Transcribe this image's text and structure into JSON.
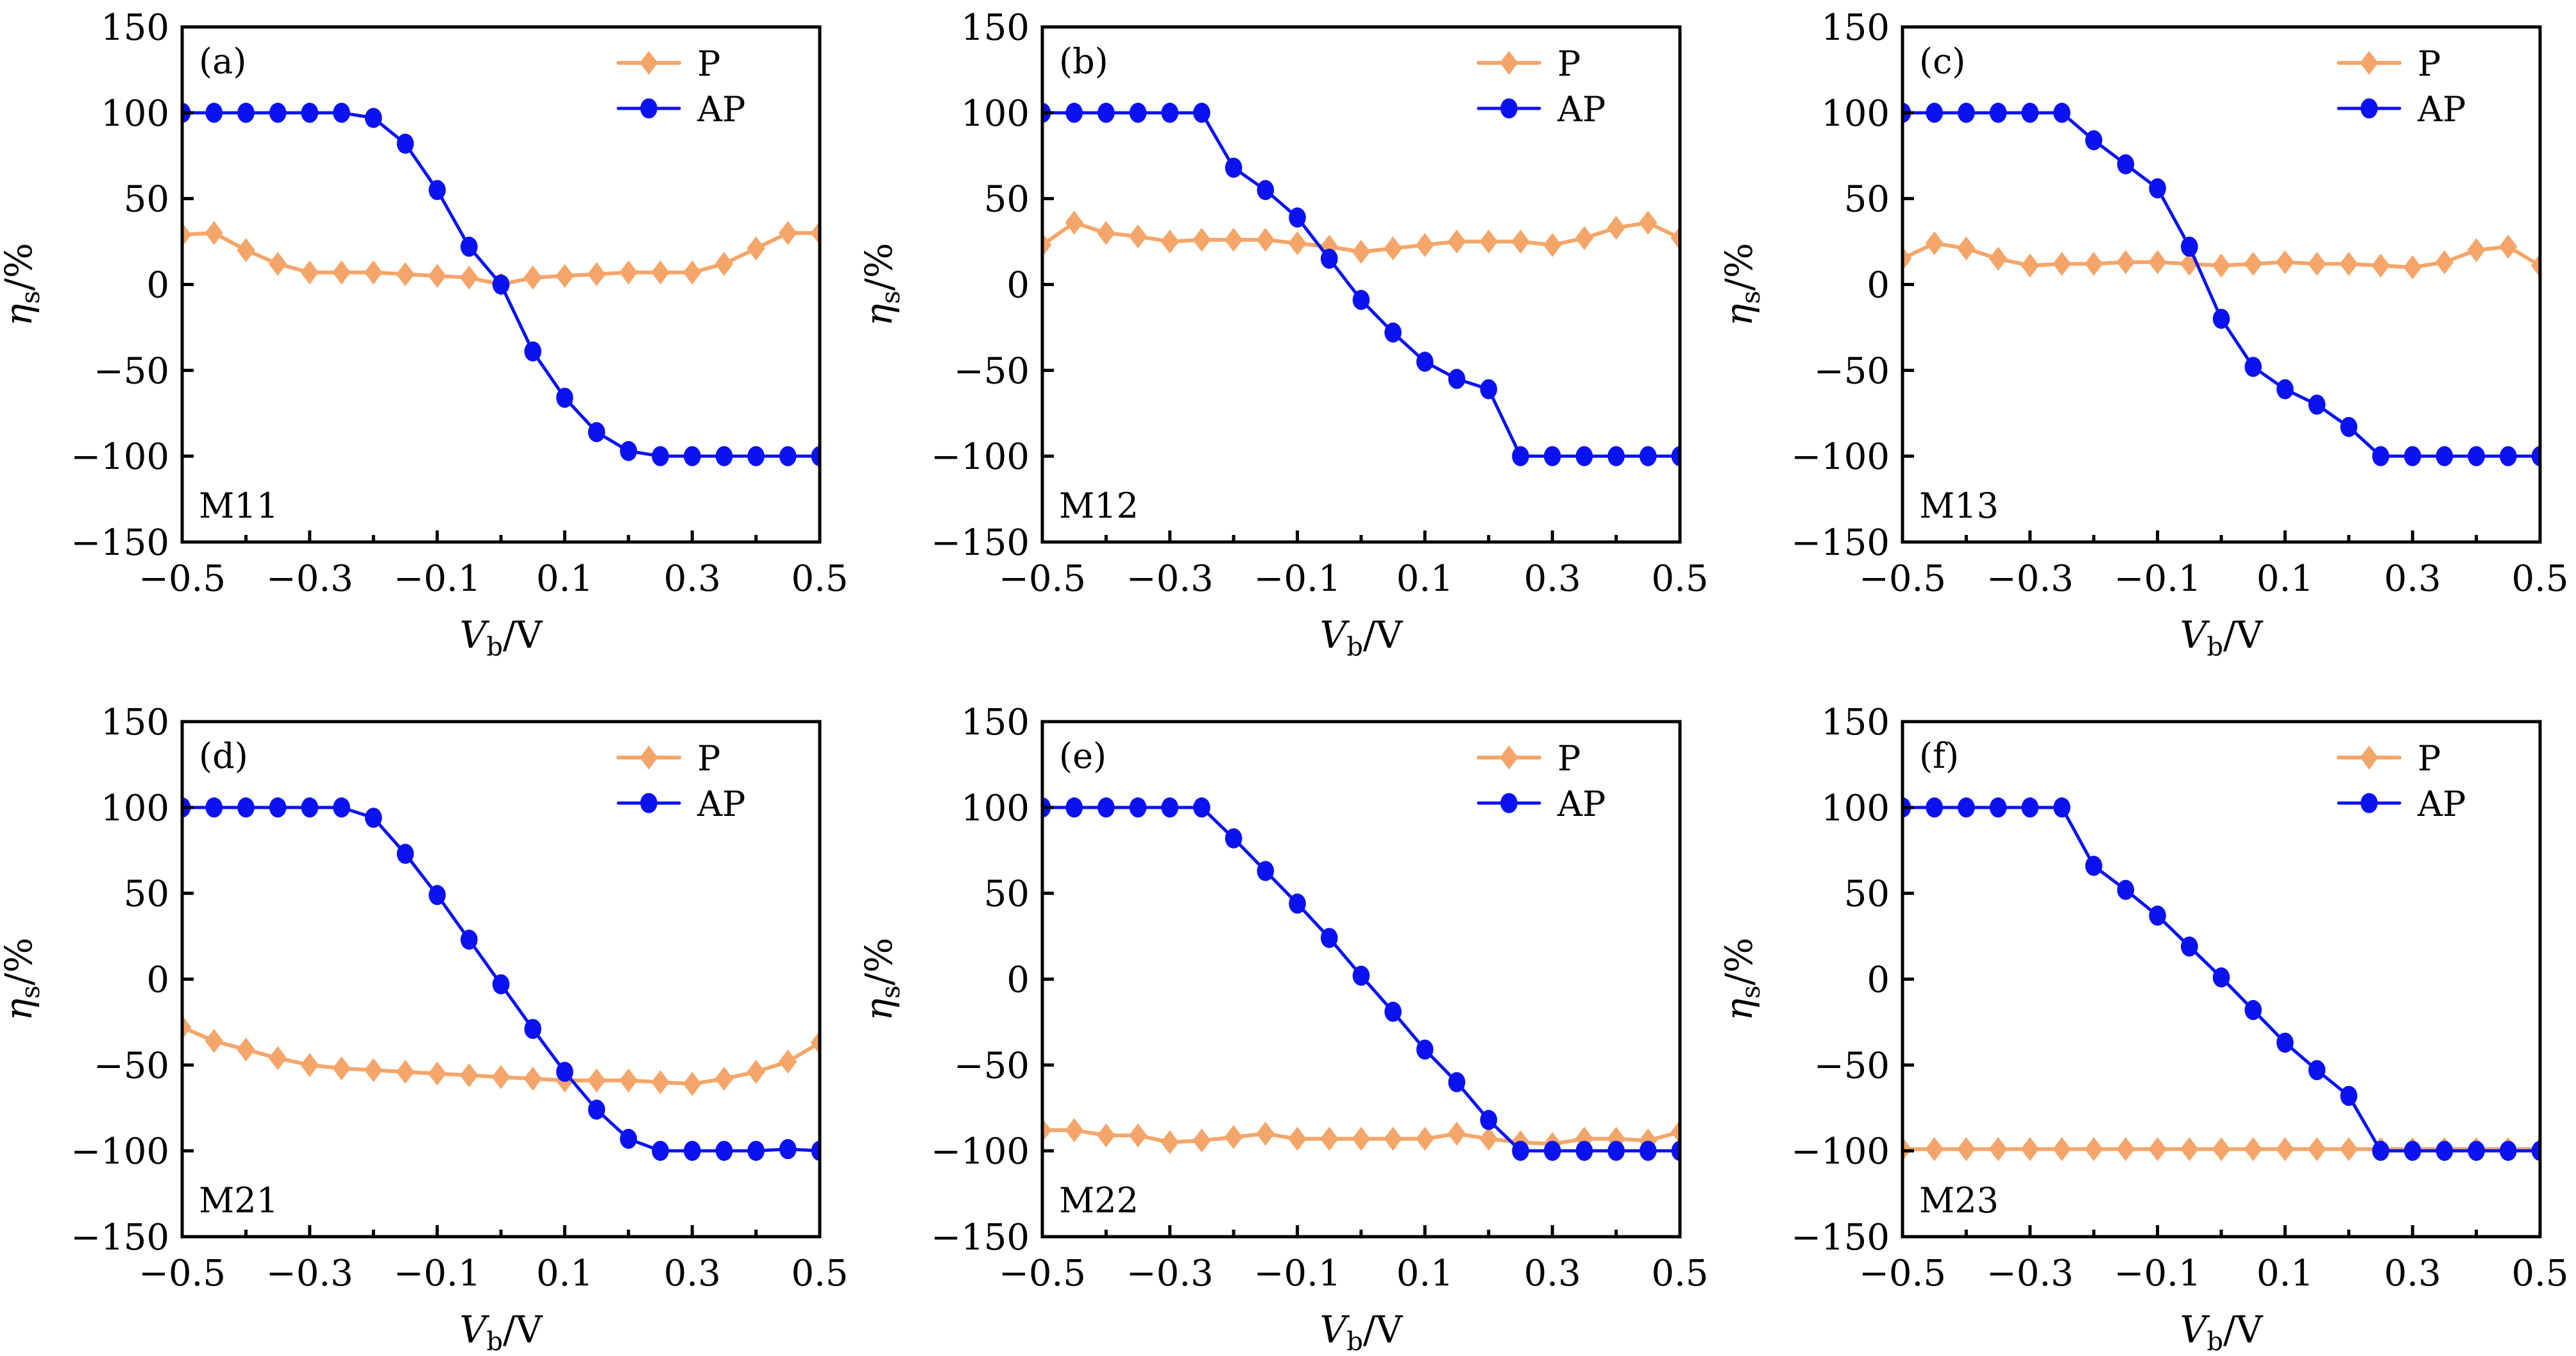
{
  "figure": {
    "description": "Spin injection efficiency vs bias voltage for six configurations",
    "colors": {
      "P": "#F4A66A",
      "AP": "#0A12F0",
      "axis": "#000000"
    }
  },
  "chart_data": [
    {
      "type": "line",
      "panel": "(a)",
      "annotation": "M11",
      "xlabel_main": "V",
      "xlabel_sub": "b",
      "xlabel_unit": "/V",
      "ylabel_main": "η",
      "ylabel_sub": "s",
      "ylabel_unit": "/%",
      "xlim": [
        -0.5,
        0.5
      ],
      "ylim": [
        -150,
        150
      ],
      "xticks": [
        -0.5,
        -0.3,
        -0.1,
        0.1,
        0.3,
        0.5
      ],
      "xtick_labels": [
        "−0.5",
        "−0.3",
        "−0.1",
        "0.1",
        "0.3",
        "0.5"
      ],
      "xminor": [
        -0.4,
        -0.2,
        0.0,
        0.2,
        0.4
      ],
      "yticks": [
        150,
        100,
        50,
        0,
        -50,
        -100,
        -150
      ],
      "ytick_labels": [
        "150",
        "100",
        "50",
        "0",
        "−50",
        "−100",
        "−150"
      ],
      "legend": [
        "P",
        "AP"
      ],
      "legend_position": "top-right",
      "x": [
        -0.5,
        -0.45,
        -0.4,
        -0.35,
        -0.3,
        -0.25,
        -0.2,
        -0.15,
        -0.1,
        -0.05,
        0,
        0.05,
        0.1,
        0.15,
        0.2,
        0.25,
        0.3,
        0.35,
        0.4,
        0.45,
        0.5
      ],
      "series": [
        {
          "name": "P",
          "marker": "diamond",
          "values": [
            29,
            30,
            20,
            12,
            7,
            7,
            7,
            6,
            5,
            4,
            0,
            4,
            5,
            6,
            7,
            7,
            7,
            12,
            21,
            30,
            30
          ]
        },
        {
          "name": "AP",
          "marker": "circle",
          "values": [
            100,
            100,
            100,
            100,
            100,
            100,
            97,
            82,
            55,
            22,
            0,
            -39,
            -66,
            -86,
            -97,
            -100,
            -100,
            -100,
            -100,
            -100,
            -100
          ]
        }
      ]
    },
    {
      "type": "line",
      "panel": "(b)",
      "annotation": "M12",
      "xlabel_main": "V",
      "xlabel_sub": "b",
      "xlabel_unit": "/V",
      "ylabel_main": "η",
      "ylabel_sub": "s",
      "ylabel_unit": "/%",
      "xlim": [
        -0.5,
        0.5
      ],
      "ylim": [
        -150,
        150
      ],
      "xticks": [
        -0.5,
        -0.3,
        -0.1,
        0.1,
        0.3,
        0.5
      ],
      "xtick_labels": [
        "−0.5",
        "−0.3",
        "−0.1",
        "0.1",
        "0.3",
        "0.5"
      ],
      "xminor": [
        -0.4,
        -0.2,
        0.0,
        0.2,
        0.4
      ],
      "yticks": [
        150,
        100,
        50,
        0,
        -50,
        -100,
        -150
      ],
      "ytick_labels": [
        "150",
        "100",
        "50",
        "0",
        "−50",
        "−100",
        "−150"
      ],
      "legend": [
        "P",
        "AP"
      ],
      "legend_position": "top-right",
      "x": [
        -0.5,
        -0.45,
        -0.4,
        -0.35,
        -0.3,
        -0.25,
        -0.2,
        -0.15,
        -0.1,
        -0.05,
        0,
        0.05,
        0.1,
        0.15,
        0.2,
        0.25,
        0.3,
        0.35,
        0.4,
        0.45,
        0.5
      ],
      "series": [
        {
          "name": "P",
          "marker": "diamond",
          "values": [
            23,
            36,
            30,
            28,
            25,
            26,
            26,
            26,
            24,
            22,
            19,
            21,
            23,
            25,
            25,
            25,
            23,
            27,
            33,
            36,
            27
          ]
        },
        {
          "name": "AP",
          "marker": "circle",
          "values": [
            100,
            100,
            100,
            100,
            100,
            100,
            68,
            55,
            39,
            15,
            -9,
            -28,
            -45,
            -55,
            -61,
            -100,
            -100,
            -100,
            -100,
            -100,
            -100
          ]
        }
      ]
    },
    {
      "type": "line",
      "panel": "(c)",
      "annotation": "M13",
      "xlabel_main": "V",
      "xlabel_sub": "b",
      "xlabel_unit": "/V",
      "ylabel_main": "η",
      "ylabel_sub": "s",
      "ylabel_unit": "/%",
      "xlim": [
        -0.5,
        0.5
      ],
      "ylim": [
        -150,
        150
      ],
      "xticks": [
        -0.5,
        -0.3,
        -0.1,
        0.1,
        0.3,
        0.5
      ],
      "xtick_labels": [
        "−0.5",
        "−0.3",
        "−0.1",
        "0.1",
        "0.3",
        "0.5"
      ],
      "xminor": [
        -0.4,
        -0.2,
        0.0,
        0.2,
        0.4
      ],
      "yticks": [
        150,
        100,
        50,
        0,
        -50,
        -100,
        -150
      ],
      "ytick_labels": [
        "150",
        "100",
        "50",
        "0",
        "−50",
        "−100",
        "−150"
      ],
      "legend": [
        "P",
        "AP"
      ],
      "legend_position": "top-right",
      "x": [
        -0.5,
        -0.45,
        -0.4,
        -0.35,
        -0.3,
        -0.25,
        -0.2,
        -0.15,
        -0.1,
        -0.05,
        0,
        0.05,
        0.1,
        0.15,
        0.2,
        0.25,
        0.3,
        0.35,
        0.4,
        0.45,
        0.5
      ],
      "series": [
        {
          "name": "P",
          "marker": "diamond",
          "values": [
            15,
            24,
            21,
            15,
            11,
            12,
            12,
            13,
            13,
            12,
            11,
            12,
            13,
            12,
            12,
            11,
            10,
            13,
            20,
            22,
            11
          ]
        },
        {
          "name": "AP",
          "marker": "circle",
          "values": [
            100,
            100,
            100,
            100,
            100,
            100,
            84,
            70,
            56,
            22,
            -20,
            -48,
            -61,
            -70,
            -83,
            -100,
            -100,
            -100,
            -100,
            -100,
            -100
          ]
        }
      ]
    },
    {
      "type": "line",
      "panel": "(d)",
      "annotation": "M21",
      "xlabel_main": "V",
      "xlabel_sub": "b",
      "xlabel_unit": "/V",
      "ylabel_main": "η",
      "ylabel_sub": "s",
      "ylabel_unit": "/%",
      "xlim": [
        -0.5,
        0.5
      ],
      "ylim": [
        -150,
        150
      ],
      "xticks": [
        -0.5,
        -0.3,
        -0.1,
        0.1,
        0.3,
        0.5
      ],
      "xtick_labels": [
        "−0.5",
        "−0.3",
        "−0.1",
        "0.1",
        "0.3",
        "0.5"
      ],
      "xminor": [
        -0.4,
        -0.2,
        0.0,
        0.2,
        0.4
      ],
      "yticks": [
        150,
        100,
        50,
        0,
        -50,
        -100,
        -150
      ],
      "ytick_labels": [
        "150",
        "100",
        "50",
        "0",
        "−50",
        "−100",
        "−150"
      ],
      "legend": [
        "P",
        "AP"
      ],
      "legend_position": "top-right",
      "x": [
        -0.5,
        -0.45,
        -0.4,
        -0.35,
        -0.3,
        -0.25,
        -0.2,
        -0.15,
        -0.1,
        -0.05,
        0,
        0.05,
        0.1,
        0.15,
        0.2,
        0.25,
        0.3,
        0.35,
        0.4,
        0.45,
        0.5
      ],
      "series": [
        {
          "name": "P",
          "marker": "diamond",
          "values": [
            -28,
            -36,
            -41,
            -46,
            -50,
            -52,
            -53,
            -54,
            -55,
            -56,
            -57,
            -58,
            -59,
            -59,
            -59,
            -60,
            -61,
            -58,
            -54,
            -48,
            -37
          ]
        },
        {
          "name": "AP",
          "marker": "circle",
          "values": [
            100,
            100,
            100,
            100,
            100,
            100,
            94,
            73,
            49,
            23,
            -3,
            -29,
            -54,
            -76,
            -93,
            -100,
            -100,
            -100,
            -100,
            -99,
            -100
          ]
        }
      ]
    },
    {
      "type": "line",
      "panel": "(e)",
      "annotation": "M22",
      "xlabel_main": "V",
      "xlabel_sub": "b",
      "xlabel_unit": "/V",
      "ylabel_main": "η",
      "ylabel_sub": "s",
      "ylabel_unit": "/%",
      "xlim": [
        -0.5,
        0.5
      ],
      "ylim": [
        -150,
        150
      ],
      "xticks": [
        -0.5,
        -0.3,
        -0.1,
        0.1,
        0.3,
        0.5
      ],
      "xtick_labels": [
        "−0.5",
        "−0.3",
        "−0.1",
        "0.1",
        "0.3",
        "0.5"
      ],
      "xminor": [
        -0.4,
        -0.2,
        0.0,
        0.2,
        0.4
      ],
      "yticks": [
        150,
        100,
        50,
        0,
        -50,
        -100,
        -150
      ],
      "ytick_labels": [
        "150",
        "100",
        "50",
        "0",
        "−50",
        "−100",
        "−150"
      ],
      "legend": [
        "P",
        "AP"
      ],
      "legend_position": "top-right",
      "x": [
        -0.5,
        -0.45,
        -0.4,
        -0.35,
        -0.3,
        -0.25,
        -0.2,
        -0.15,
        -0.1,
        -0.05,
        0,
        0.05,
        0.1,
        0.15,
        0.2,
        0.25,
        0.3,
        0.35,
        0.4,
        0.45,
        0.5
      ],
      "series": [
        {
          "name": "P",
          "marker": "diamond",
          "values": [
            -88,
            -88,
            -91,
            -91,
            -95,
            -94,
            -92,
            -90,
            -93,
            -93,
            -93,
            -93,
            -93,
            -90,
            -93,
            -95,
            -96,
            -93,
            -93,
            -94,
            -89
          ]
        },
        {
          "name": "AP",
          "marker": "circle",
          "values": [
            100,
            100,
            100,
            100,
            100,
            100,
            82,
            63,
            44,
            24,
            2,
            -19,
            -41,
            -60,
            -82,
            -100,
            -100,
            -100,
            -100,
            -100,
            -100
          ]
        }
      ]
    },
    {
      "type": "line",
      "panel": "(f)",
      "annotation": "M23",
      "xlabel_main": "V",
      "xlabel_sub": "b",
      "xlabel_unit": "/V",
      "ylabel_main": "η",
      "ylabel_sub": "s",
      "ylabel_unit": "/%",
      "xlim": [
        -0.5,
        0.5
      ],
      "ylim": [
        -150,
        150
      ],
      "xticks": [
        -0.5,
        -0.3,
        -0.1,
        0.1,
        0.3,
        0.5
      ],
      "xtick_labels": [
        "−0.5",
        "−0.3",
        "−0.1",
        "0.1",
        "0.3",
        "0.5"
      ],
      "xminor": [
        -0.4,
        -0.2,
        0.0,
        0.2,
        0.4
      ],
      "yticks": [
        150,
        100,
        50,
        0,
        -50,
        -100,
        -150
      ],
      "ytick_labels": [
        "150",
        "100",
        "50",
        "0",
        "−50",
        "−100",
        "−150"
      ],
      "legend": [
        "P",
        "AP"
      ],
      "legend_position": "top-right",
      "x": [
        -0.5,
        -0.45,
        -0.4,
        -0.35,
        -0.3,
        -0.25,
        -0.2,
        -0.15,
        -0.1,
        -0.05,
        0,
        0.05,
        0.1,
        0.15,
        0.2,
        0.25,
        0.3,
        0.35,
        0.4,
        0.45,
        0.5
      ],
      "series": [
        {
          "name": "P",
          "marker": "diamond",
          "values": [
            -99,
            -99,
            -99,
            -99,
            -99,
            -99,
            -99,
            -99,
            -99,
            -99,
            -99,
            -99,
            -99,
            -99,
            -99,
            -99,
            -99,
            -99,
            -99,
            -99,
            -99
          ]
        },
        {
          "name": "AP",
          "marker": "circle",
          "values": [
            100,
            100,
            100,
            100,
            100,
            100,
            66,
            52,
            37,
            19,
            1,
            -18,
            -37,
            -53,
            -68,
            -100,
            -100,
            -100,
            -100,
            -100,
            -100
          ]
        }
      ]
    }
  ]
}
